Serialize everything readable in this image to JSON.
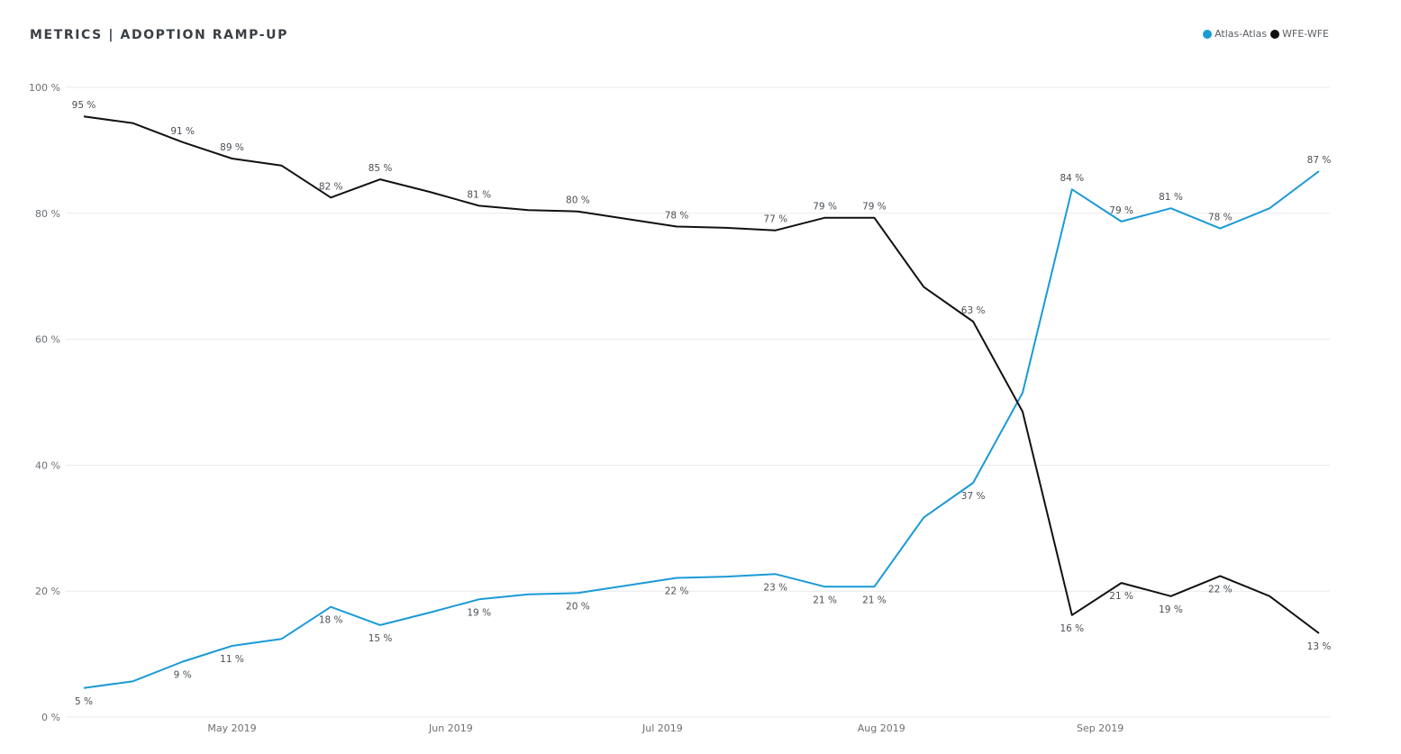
{
  "chart_data": {
    "type": "line",
    "title": "METRICS | ADOPTION RAMP-UP",
    "ylim": [
      0,
      100
    ],
    "yticks": [
      "0 %",
      "20 %",
      "40 %",
      "60 %",
      "80 %",
      "100 %"
    ],
    "xticks": [
      "May 2019",
      "Jun 2019",
      "Jul 2019",
      "Aug 2019",
      "Sep 2019"
    ],
    "grid": true,
    "legend_position": "top-right",
    "x": [
      "2019-04-10",
      "2019-04-17",
      "2019-04-24",
      "2019-05-01",
      "2019-05-08",
      "2019-05-15",
      "2019-05-22",
      "2019-05-29",
      "2019-06-05",
      "2019-06-12",
      "2019-06-19",
      "2019-06-26",
      "2019-07-03",
      "2019-07-10",
      "2019-07-17",
      "2019-07-24",
      "2019-07-31",
      "2019-08-07",
      "2019-08-14",
      "2019-08-21",
      "2019-08-28",
      "2019-09-04",
      "2019-09-11",
      "2019-09-18",
      "2019-09-25",
      "2019-10-02"
    ],
    "series": [
      {
        "name": "Atlas-Atlas",
        "color": "#1a9ad6",
        "values": [
          4.6,
          5.7,
          8.8,
          11.3,
          12.4,
          17.5,
          14.6,
          16.6,
          18.7,
          19.5,
          19.7,
          20.9,
          22.1,
          22.3,
          22.7,
          20.7,
          20.7,
          31.7,
          37.2,
          51.5,
          83.8,
          78.7,
          80.8,
          77.6,
          80.8,
          86.7
        ],
        "labels": [
          "5 %",
          "",
          "9 %",
          "11 %",
          "",
          "18 %",
          "15 %",
          "",
          "19 %",
          "",
          "20 %",
          "",
          "22 %",
          "",
          "23 %",
          "21 %",
          "21 %",
          "",
          "37 %",
          "",
          "84 %",
          "79 %",
          "81 %",
          "78 %",
          "",
          "87 %"
        ]
      },
      {
        "name": "WFE-WFE",
        "color": "#111111",
        "values": [
          95.4,
          94.3,
          91.3,
          88.7,
          87.6,
          82.5,
          85.4,
          83.4,
          81.2,
          80.5,
          80.3,
          79.1,
          77.9,
          77.7,
          77.3,
          79.3,
          79.3,
          68.3,
          62.8,
          48.5,
          16.2,
          21.3,
          19.2,
          22.4,
          19.2,
          13.3
        ],
        "labels": [
          "95 %",
          "",
          "91 %",
          "89 %",
          "",
          "82 %",
          "85 %",
          "",
          "81 %",
          "",
          "80 %",
          "",
          "78 %",
          "",
          "77 %",
          "79 %",
          "79 %",
          "",
          "63 %",
          "",
          "16 %",
          "21 %",
          "19 %",
          "22 %",
          "",
          "13 %"
        ]
      }
    ]
  }
}
